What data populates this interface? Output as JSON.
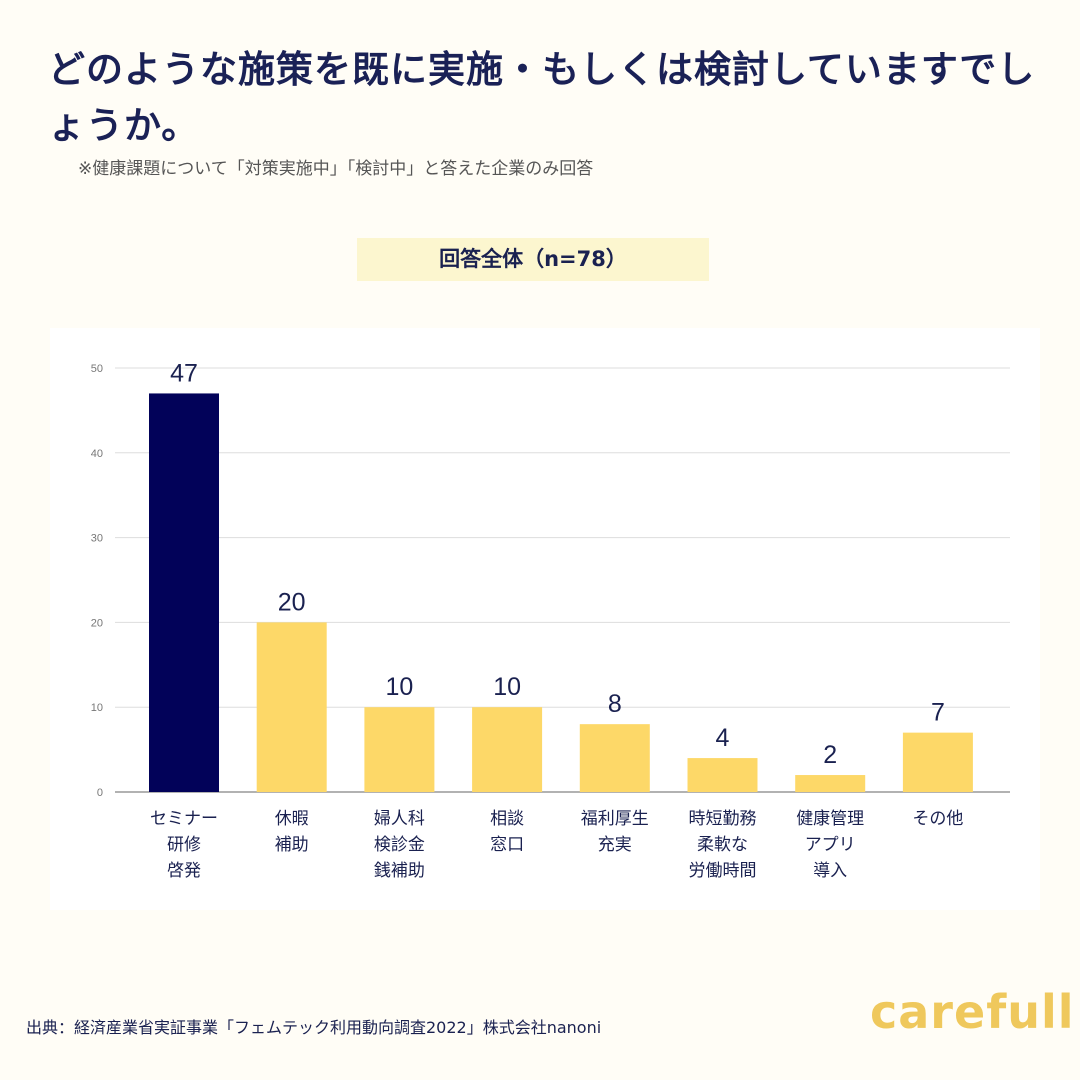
{
  "title": "どのような施策を既に実施・もしくは検討していますでしょうか。",
  "note": "※健康課題について「対策実施中」「検討中」と答えた企業のみ回答",
  "source": "出典：経済産業省実証事業「フェムテック利用動向調査2022」株式会社nanoni",
  "logo": "carefull",
  "chart_data": {
    "type": "bar",
    "title": "回答全体（n=78）",
    "categories": [
      "セミナー\n研修\n啓発",
      "休暇\n補助",
      "婦人科\n検診金\n銭補助",
      "相談\n窓口",
      "福利厚生\n充実",
      "時短勤務\n柔軟な\n労働時間",
      "健康管理\nアプリ\n導入",
      "その他"
    ],
    "values": [
      47,
      20,
      10,
      10,
      8,
      4,
      2,
      7
    ],
    "data_labels": [
      "47",
      "20",
      "10",
      "10",
      "8",
      "4",
      "2",
      "7"
    ],
    "yticks": [
      "0",
      "10",
      "20",
      "30",
      "40",
      "50"
    ],
    "ylim": [
      0,
      50
    ],
    "grid": true,
    "highlight_color": "#020259",
    "bar_color": "#fdd868",
    "highlight_index": 0
  }
}
